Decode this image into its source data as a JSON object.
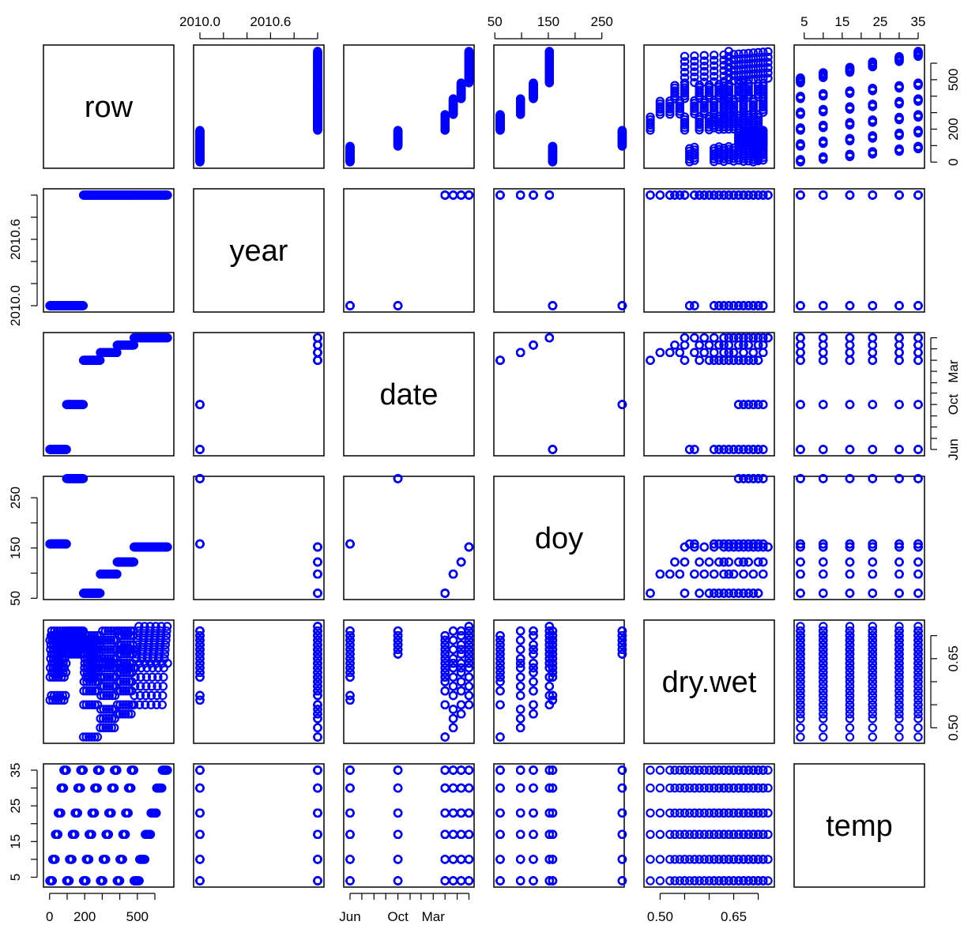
{
  "chart_data": {
    "type": "scatter",
    "subtype": "scatterplot-matrix",
    "point_color": "#0000FF",
    "point_shape": "open-circle",
    "variables": [
      {
        "name": "row",
        "range": [
          1,
          672
        ],
        "ticks": [
          0,
          100,
          200,
          300,
          400,
          500,
          600
        ],
        "tick_labels": [
          "0",
          "",
          "200",
          "",
          "",
          "500",
          ""
        ]
      },
      {
        "name": "year",
        "range": [
          2010,
          2011
        ],
        "ticks": [
          2010.0,
          2010.2,
          2010.4,
          2010.6,
          2010.8,
          2011.0
        ],
        "tick_labels": [
          "2010.0",
          "",
          "",
          "2010.6",
          "",
          ""
        ]
      },
      {
        "name": "date",
        "range": [
          0,
          300
        ],
        "ticks": [
          0,
          30,
          61,
          91,
          122,
          153,
          181,
          212,
          242,
          273,
          303
        ],
        "tick_labels": [
          "Jun",
          "",
          "",
          "",
          "Oct",
          "",
          "",
          "Mar",
          "",
          "",
          ""
        ]
      },
      {
        "name": "doy",
        "range": [
          60,
          280
        ],
        "ticks": [
          50,
          100,
          150,
          200,
          250
        ],
        "tick_labels": [
          "50",
          "",
          "150",
          "",
          "250"
        ]
      },
      {
        "name": "dry.wet",
        "range": [
          0.48,
          0.72
        ],
        "ticks": [
          0.5,
          0.55,
          0.6,
          0.65,
          0.7
        ],
        "tick_labels": [
          "0.50",
          "",
          "",
          "0.65",
          ""
        ]
      },
      {
        "name": "temp",
        "range": [
          4,
          35
        ],
        "ticks": [
          5,
          10,
          15,
          20,
          25,
          30,
          35
        ],
        "tick_labels": [
          "5",
          "",
          "15",
          "",
          "25",
          "",
          "35"
        ]
      }
    ],
    "groups": [
      {
        "date": 0,
        "year": 2010,
        "doy": 158,
        "row_start": 1,
        "row_end": 96,
        "drywet": [
          0.69,
          0.56,
          0.61,
          0.63,
          0.67,
          0.65,
          0.68,
          0.7,
          0.57,
          0.66,
          0.71,
          0.62,
          0.64,
          0.69,
          0.7
        ]
      },
      {
        "date": 122,
        "year": 2010,
        "doy": 288,
        "row_start": 97,
        "row_end": 192,
        "drywet": [
          0.66,
          0.67,
          0.68,
          0.69,
          0.7,
          0.71,
          0.68,
          0.67,
          0.7,
          0.69,
          0.66,
          0.71
        ]
      },
      {
        "date": 242,
        "year": 2011,
        "doy": 60,
        "row_start": 193,
        "row_end": 288,
        "drywet": [
          0.48,
          0.55,
          0.58,
          0.6,
          0.62,
          0.63,
          0.64,
          0.65,
          0.66,
          0.67,
          0.68,
          0.69,
          0.7,
          0.61
        ]
      },
      {
        "date": 263,
        "year": 2011,
        "doy": 98,
        "row_start": 289,
        "row_end": 384,
        "drywet": [
          0.5,
          0.52,
          0.54,
          0.57,
          0.59,
          0.61,
          0.63,
          0.65,
          0.67,
          0.69,
          0.71,
          0.64
        ]
      },
      {
        "date": 283,
        "year": 2011,
        "doy": 122,
        "row_start": 385,
        "row_end": 480,
        "drywet": [
          0.53,
          0.55,
          0.58,
          0.6,
          0.62,
          0.64,
          0.66,
          0.68,
          0.7,
          0.71,
          0.63,
          0.67
        ]
      },
      {
        "date": 303,
        "year": 2011,
        "doy": 152,
        "row_start": 481,
        "row_end": 672,
        "drywet": [
          0.55,
          0.57,
          0.59,
          0.61,
          0.63,
          0.65,
          0.66,
          0.67,
          0.68,
          0.69,
          0.7,
          0.71,
          0.72,
          0.64
        ]
      }
    ],
    "temps": [
      4,
      10,
      17,
      23,
      30,
      35
    ]
  }
}
